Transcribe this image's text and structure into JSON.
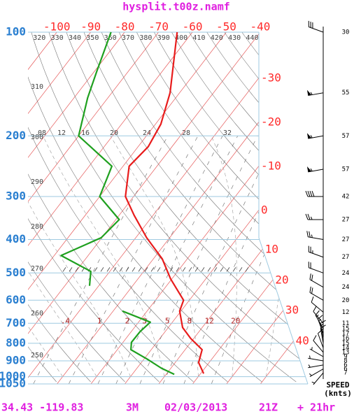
{
  "chart_data": {
    "type": "skewt",
    "title": "hysplit.t00z.namf",
    "ylim": [
      1050,
      100
    ],
    "yticks": [
      100,
      200,
      300,
      400,
      500,
      600,
      700,
      800,
      900,
      1000,
      1050
    ],
    "xlim": [
      -108.5,
      -40.4
    ],
    "temperature_ticks": [
      -100,
      -90,
      -80,
      -70,
      -60,
      -50,
      -40,
      -30,
      -20,
      -10,
      0,
      10,
      20,
      30,
      40
    ],
    "theta_ticks": [
      250,
      260,
      270,
      280,
      290,
      300,
      310,
      320,
      330,
      340,
      350,
      360,
      370,
      380,
      390,
      400,
      410,
      420,
      430,
      440
    ],
    "mixing_ratio_ticks": [
      {
        "value": 0.4,
        "label": ".4"
      },
      1,
      2,
      3,
      5,
      8,
      12,
      20
    ],
    "upper_labels": [
      "08",
      "12",
      "16",
      "20",
      "24",
      "28",
      "32"
    ],
    "series": [
      {
        "color": "#e81c1c",
        "pressure": [
          100,
          150,
          185,
          215,
          245,
          300,
          340,
          395,
          455,
          520,
          600,
          645,
          720,
          775,
          835,
          910,
          980
        ],
        "values": [
          -64.5,
          -52.8,
          -48.4,
          -47,
          -48.2,
          -42.4,
          -35.6,
          -26.8,
          -17.4,
          -10.4,
          -1.7,
          -0.4,
          4.2,
          9.1,
          15,
          16.9,
          20.9
        ]
      },
      {
        "color": "#1fa01f",
        "pressure": [
          100,
          130,
          155,
          200,
          245,
          300,
          350,
          395,
          445,
          495,
          545,
          600,
          645,
          695,
          740,
          795,
          835,
          890,
          945,
          985
        ],
        "values": [
          -84,
          -79.3,
          -76,
          -70,
          -53.3,
          -50,
          -39,
          -40.2,
          -48,
          -35.6,
          -32.7,
          null,
          -17.3,
          -6.5,
          -7.4,
          -7.5,
          -6,
          1,
          7.2,
          12.4
        ]
      }
    ],
    "winds": {
      "pressure": [
        100,
        150,
        200,
        250,
        300,
        350,
        400,
        450,
        500,
        550,
        600,
        650,
        700,
        725,
        750,
        775,
        800,
        825,
        850,
        875,
        900,
        925,
        950,
        975
      ],
      "speed": [
        30,
        55,
        57,
        57,
        42,
        27,
        27,
        27,
        24,
        24,
        20,
        12,
        11,
        15,
        17,
        16,
        15,
        14,
        13,
        9,
        8,
        6,
        6,
        7
      ],
      "direction": [
        290,
        260,
        260,
        260,
        270,
        270,
        280,
        290,
        290,
        300,
        300,
        310,
        320,
        330,
        340,
        350,
        350,
        340,
        320,
        300,
        280,
        260,
        240,
        220
      ]
    },
    "wind_axis_label": [
      "SPEED",
      "(knts)"
    ],
    "footer": [
      "34.43 -119.83",
      "3M",
      "02/03/2013",
      "21Z",
      "+ 21hr"
    ]
  }
}
